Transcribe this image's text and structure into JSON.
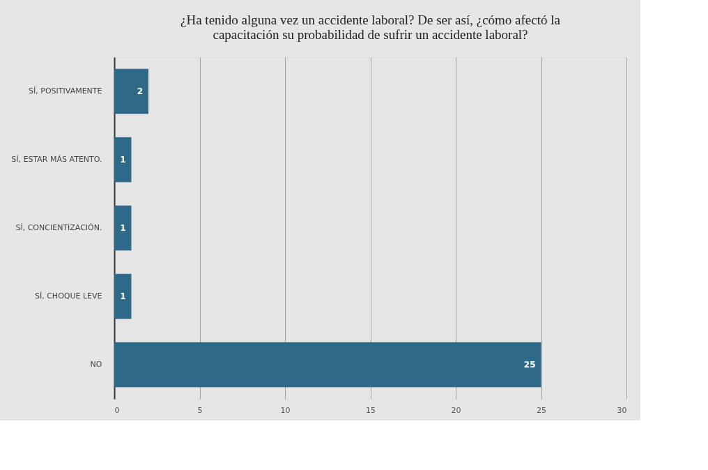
{
  "chart_data": {
    "type": "bar",
    "orientation": "horizontal",
    "title": "¿Ha tenido alguna vez un accidente laboral? De ser así, ¿cómo afectó la\ncapacitación su probabilidad de sufrir un accidente laboral?",
    "categories": [
      "SÍ, POSITIVAMENTE",
      "SÍ, ESTAR MÁS ATENTO.",
      "SÍ, CONCIENTIZACIÓN.",
      "SÍ, CHOQUE LEVE",
      "NO"
    ],
    "values": [
      2,
      1,
      1,
      1,
      25
    ],
    "color": "#2e6a88",
    "xlim": [
      0,
      30
    ],
    "xticks": [
      0,
      5,
      10,
      15,
      20,
      25,
      30
    ],
    "grid": "x",
    "data_labels": true
  }
}
